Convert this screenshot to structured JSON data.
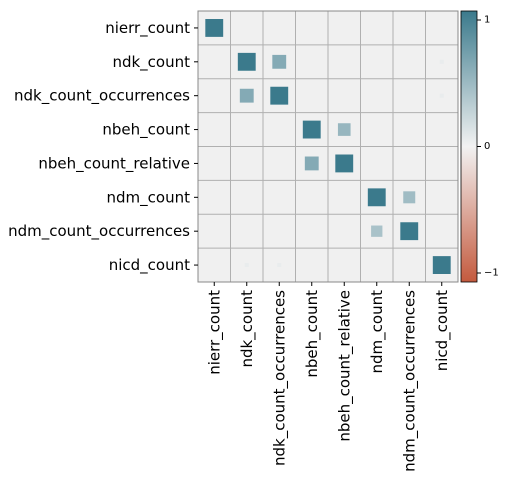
{
  "chart_data": {
    "type": "heatmap",
    "subtype": "correlation-squares",
    "variables": [
      "nierr_count",
      "ndk_count",
      "ndk_count_occurrences",
      "nbeh_count",
      "nbeh_count_relative",
      "ndm_count",
      "ndm_count_occurrences",
      "nicd_count"
    ],
    "matrix": [
      [
        1,
        0,
        0,
        0,
        0,
        0,
        0,
        0
      ],
      [
        0,
        1,
        0.6,
        0,
        0,
        0,
        0,
        0.05
      ],
      [
        0,
        0.6,
        1,
        0,
        0,
        0,
        0,
        0.05
      ],
      [
        0,
        0,
        0,
        1,
        0.5,
        0,
        0,
        0
      ],
      [
        0,
        0,
        0,
        0.6,
        1,
        0,
        0,
        0
      ],
      [
        0,
        0,
        0,
        0,
        0,
        1,
        0.45,
        0
      ],
      [
        0,
        0,
        0,
        0,
        0,
        0.4,
        1,
        0
      ],
      [
        0,
        0.05,
        0.05,
        0,
        0,
        0,
        0,
        1
      ]
    ],
    "colorbar": {
      "range": [
        -1,
        1
      ],
      "ticks": [
        {
          "value": 1,
          "label": "1"
        },
        {
          "value": 0,
          "label": "0"
        },
        {
          "value": -1,
          "label": "−1"
        }
      ]
    },
    "colors": {
      "positive": "#3b7a8c",
      "neutral": "#f2f2f2",
      "negative": "#c45a3e",
      "cell_background": "#f0f0f0",
      "grid": "#b0b0b0"
    },
    "grid": true
  }
}
